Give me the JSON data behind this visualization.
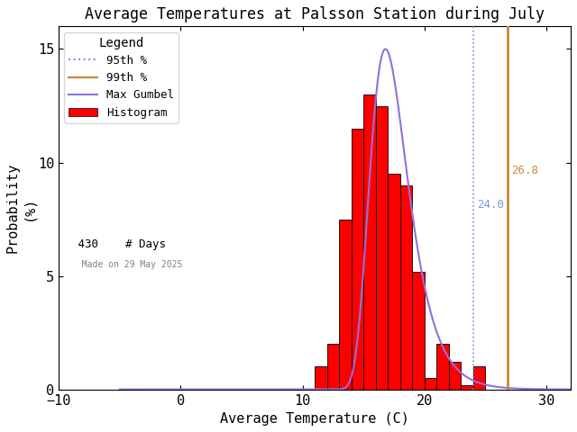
{
  "title": "Average Temperatures at Palsson Station during July",
  "xlabel": "Average Temperature (C)",
  "ylabel": "Probability\n(%)",
  "xlim": [
    -10,
    32
  ],
  "ylim": [
    0,
    16
  ],
  "xticks": [
    -10,
    0,
    10,
    20,
    30
  ],
  "yticks": [
    0,
    5,
    10,
    15
  ],
  "bin_edges": [
    11,
    12,
    13,
    14,
    15,
    16,
    17,
    18,
    19,
    20,
    21,
    22,
    23,
    24,
    25,
    26,
    27,
    28,
    29,
    30
  ],
  "bin_heights": [
    1.0,
    2.0,
    7.5,
    11.5,
    13.0,
    12.5,
    9.5,
    9.0,
    5.2,
    0.5,
    2.0,
    1.2,
    0.2,
    1.0,
    0.0,
    0.0,
    0.0,
    0.0,
    0.0
  ],
  "hist_color": "red",
  "hist_edgecolor": "black",
  "gumbel_mu": 16.8,
  "gumbel_beta": 1.55,
  "gumbel_scale": 15.0,
  "gumbel_color": "mediumpurple",
  "gumbel_lw": 1.5,
  "pct95": 24.0,
  "pct99": 26.8,
  "pct95_color": "#7799dd",
  "pct99_color": "#cc8833",
  "pct95_linestyle": "dotted",
  "pct99_linestyle": "solid",
  "legend_title": "Legend",
  "n_days": 430,
  "made_on": "Made on 29 May 2025",
  "background_color": "white",
  "title_fontsize": 12,
  "axis_fontsize": 11,
  "tick_fontsize": 11
}
